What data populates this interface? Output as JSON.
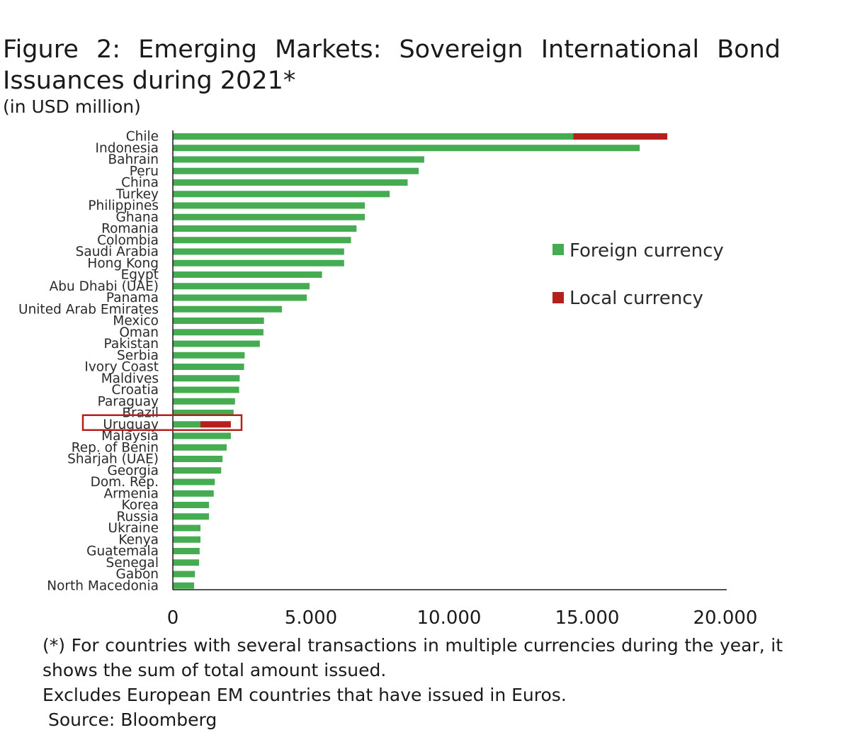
{
  "header": {
    "title": "Figure 2: Emerging Markets: Sovereign International Bond Issuances during 2021*",
    "subtitle": "(in USD million)"
  },
  "footnotes": {
    "note1": "(*) For countries with several transactions in multiple currencies during the year, it shows the sum of total amount issued.",
    "note2": "Excludes European EM countries that have issued in Euros.",
    "source": "Source: Bloomberg"
  },
  "colors": {
    "foreign": "#45ac52",
    "local": "#b5201c",
    "highlight_box": "#b5201c",
    "axis": "#1a1a1a"
  },
  "chart_data": {
    "type": "bar",
    "orientation": "horizontal",
    "stacked": true,
    "xlim": [
      0,
      20000
    ],
    "xticks": [
      0,
      5000,
      10000,
      15000,
      20000
    ],
    "xtick_labels": [
      "0",
      "5.000",
      "10.000",
      "15.000",
      "20.000"
    ],
    "legend_position": "right",
    "categories": [
      "Chile",
      "Indonesia",
      "Bahrain",
      "Peru",
      "China",
      "Turkey",
      "Philippines",
      "Ghana",
      "Romania",
      "Colombia",
      "Saudi Arabia",
      "Hong Kong",
      "Egypt",
      "Abu Dhabi (UAE)",
      "Panama",
      "United Arab Emirates",
      "Mexico",
      "Oman",
      "Pakistan",
      "Serbia",
      "Ivory Coast",
      "Maldives",
      "Croatia",
      "Paraguay",
      "Brazil",
      "Uruguay",
      "Malaysia",
      "Rep. of Benin",
      "Sharjah (UAE)",
      "Georgia",
      "Dom. Rep.",
      "Armenia",
      "Korea",
      "Russia",
      "Ukraine",
      "Kenya",
      "Guatemala",
      "Senegal",
      "Gabon",
      "North Macedonia"
    ],
    "series": [
      {
        "name": "Foreign currency",
        "color": "#45ac52",
        "values": [
          14500,
          16900,
          9100,
          8900,
          8500,
          7850,
          6950,
          6950,
          6650,
          6450,
          6200,
          6200,
          5400,
          4950,
          4850,
          3950,
          3300,
          3280,
          3150,
          2600,
          2580,
          2420,
          2400,
          2250,
          2200,
          1000,
          2100,
          1950,
          1800,
          1750,
          1520,
          1480,
          1310,
          1310,
          1000,
          1000,
          970,
          950,
          800,
          770
        ]
      },
      {
        "name": "Local currency",
        "color": "#b5201c",
        "values": [
          3400,
          0,
          0,
          0,
          0,
          0,
          0,
          0,
          0,
          0,
          0,
          0,
          0,
          0,
          0,
          0,
          0,
          0,
          0,
          0,
          0,
          0,
          0,
          0,
          0,
          1100,
          0,
          0,
          0,
          0,
          0,
          0,
          0,
          0,
          0,
          0,
          0,
          0,
          0,
          0
        ]
      }
    ],
    "highlighted_category": "Uruguay"
  }
}
